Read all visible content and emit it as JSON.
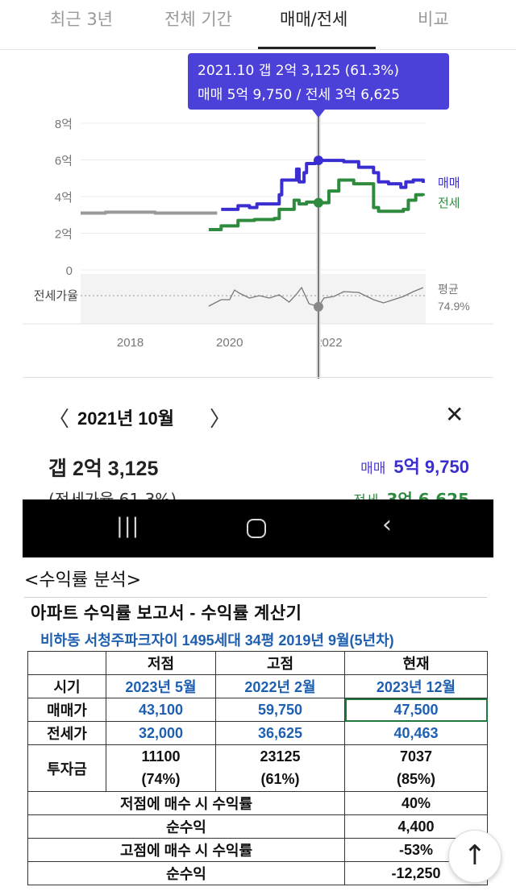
{
  "tabs": [
    {
      "label": "최근 3년",
      "active": false
    },
    {
      "label": "전체 기간",
      "active": false
    },
    {
      "label": "매매/전세",
      "active": true
    },
    {
      "label": "비교",
      "active": false
    }
  ],
  "chart_data": {
    "type": "line",
    "y_tick_labels": [
      "8억",
      "6억",
      "4억",
      "2억",
      "0"
    ],
    "ylim": [
      0,
      8
    ],
    "x_tick_labels": [
      "2018",
      "2020",
      "2022"
    ],
    "ratio_label": "전세가율",
    "average_label": "평균",
    "average_value": "74.9%",
    "tooltip": {
      "line1": "2021.10  갭 2억 3,125 (61.3%)",
      "line2": "매매 5억 9,750 / 전세 3억 6,625"
    },
    "cursor_x": 2021.79,
    "series": [
      {
        "name": "매매",
        "color": "#3a2ed0",
        "points": [
          [
            2019.83,
            3.3
          ],
          [
            2020.17,
            3.5
          ],
          [
            2020.4,
            3.4
          ],
          [
            2020.55,
            3.6
          ],
          [
            2020.9,
            3.6
          ],
          [
            2021.0,
            4.1
          ],
          [
            2021.05,
            4.9
          ],
          [
            2021.3,
            4.9
          ],
          [
            2021.35,
            5.5
          ],
          [
            2021.4,
            4.8
          ],
          [
            2021.5,
            5.3
          ],
          [
            2021.55,
            5.8
          ],
          [
            2021.79,
            5.975
          ],
          [
            2022.3,
            5.9
          ],
          [
            2022.6,
            5.6
          ],
          [
            2022.9,
            5.3
          ],
          [
            2023.0,
            4.8
          ],
          [
            2023.2,
            4.7
          ],
          [
            2023.45,
            4.5
          ],
          [
            2023.55,
            4.8
          ],
          [
            2023.7,
            4.9
          ],
          [
            2023.9,
            4.75
          ]
        ]
      },
      {
        "name": "전세",
        "color": "#2e8b3e",
        "points": [
          [
            2019.58,
            2.2
          ],
          [
            2019.83,
            2.4
          ],
          [
            2020.17,
            2.7
          ],
          [
            2020.5,
            2.75
          ],
          [
            2020.9,
            2.8
          ],
          [
            2021.0,
            3.3
          ],
          [
            2021.2,
            3.3
          ],
          [
            2021.3,
            3.8
          ],
          [
            2021.4,
            3.6
          ],
          [
            2021.55,
            3.7
          ],
          [
            2021.79,
            3.6625
          ],
          [
            2022.0,
            4.3
          ],
          [
            2022.2,
            4.9
          ],
          [
            2022.5,
            4.7
          ],
          [
            2022.8,
            4.7
          ],
          [
            2022.9,
            3.4
          ],
          [
            2023.0,
            3.2
          ],
          [
            2023.3,
            3.2
          ],
          [
            2023.5,
            3.3
          ],
          [
            2023.6,
            3.8
          ],
          [
            2023.75,
            4.1
          ],
          [
            2023.9,
            4.05
          ]
        ]
      },
      {
        "name": "",
        "color": "#9a9a9a",
        "points": [
          [
            2017.0,
            3.1
          ],
          [
            2017.5,
            3.15
          ],
          [
            2018.0,
            3.15
          ],
          [
            2018.5,
            3.1
          ],
          [
            2019.0,
            3.1
          ],
          [
            2019.5,
            3.1
          ],
          [
            2019.75,
            3.1
          ]
        ]
      }
    ],
    "ratio_series": [
      [
        2019.58,
        0.62
      ],
      [
        2019.83,
        0.7
      ],
      [
        2020.0,
        0.7
      ],
      [
        2020.1,
        0.82
      ],
      [
        2020.2,
        0.78
      ],
      [
        2020.4,
        0.72
      ],
      [
        2020.6,
        0.75
      ],
      [
        2020.8,
        0.72
      ],
      [
        2021.0,
        0.76
      ],
      [
        2021.2,
        0.67
      ],
      [
        2021.35,
        0.77
      ],
      [
        2021.45,
        0.85
      ],
      [
        2021.6,
        0.65
      ],
      [
        2021.79,
        0.613
      ],
      [
        2021.9,
        0.72
      ],
      [
        2022.1,
        0.74
      ],
      [
        2022.3,
        0.8
      ],
      [
        2022.6,
        0.79
      ],
      [
        2022.9,
        0.7
      ],
      [
        2023.1,
        0.66
      ],
      [
        2023.3,
        0.7
      ],
      [
        2023.5,
        0.74
      ],
      [
        2023.7,
        0.8
      ],
      [
        2023.9,
        0.85
      ]
    ]
  },
  "selected": {
    "month": "2021년 10월",
    "gap": "갭 2억 3,125",
    "sale_label": "매매",
    "sale_value": "5억 9,750",
    "jeonse_line_partial": "(전세가율 61.3%)",
    "jeonse_label": "전세",
    "jeonse_value": "3억 6,625"
  },
  "section_title": "<수익률 분석>",
  "report": {
    "title": "아파트 수익률 보고서 - 수익률 계산기",
    "subtitle": "비하동 서청주파크자이 1495세대 34평 2019년 9월(5년차)",
    "header": [
      "",
      "저점",
      "고점",
      "현재"
    ],
    "rows": [
      {
        "label": "시기",
        "values": [
          "2023년 5월",
          "2022년 2월",
          "2023년 12월"
        ]
      },
      {
        "label": "매매가",
        "values": [
          "43,100",
          "59,750",
          "47,500"
        ]
      },
      {
        "label": "전세가",
        "values": [
          "32,000",
          "36,625",
          "40,463"
        ]
      },
      {
        "label": "투자금",
        "values": [
          "11100",
          "23125",
          "7037"
        ],
        "sub": [
          "(74%)",
          "(61%)",
          "(85%)"
        ]
      }
    ],
    "summary": [
      {
        "label": "저점에 매수 시 수익률",
        "value": "40%"
      },
      {
        "label": "순수익",
        "value": "4,400"
      },
      {
        "label": "고점에 매수 시 수익률",
        "value": "-53%"
      },
      {
        "label": "순수익",
        "value": "-12,250"
      }
    ]
  }
}
